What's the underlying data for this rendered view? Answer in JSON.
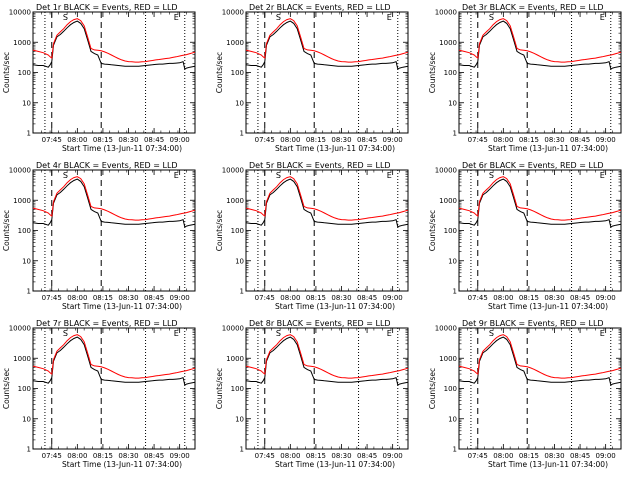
{
  "figure": {
    "panels": [
      {
        "title": "Det 1r BLACK = Events, RED = LLD"
      },
      {
        "title": "Det 2r BLACK = Events, RED = LLD"
      },
      {
        "title": "Det 3r BLACK = Events, RED = LLD"
      },
      {
        "title": "Det 4r BLACK = Events, RED = LLD"
      },
      {
        "title": "Det 5r BLACK = Events, RED = LLD"
      },
      {
        "title": "Det 6r BLACK = Events, RED = LLD"
      },
      {
        "title": "Det 7r BLACK = Events, RED = LLD"
      },
      {
        "title": "Det 8r BLACK = Events, RED = LLD"
      },
      {
        "title": "Det 9r BLACK = Events, RED = LLD"
      }
    ],
    "xlabel": "Start Time (13-Jun-11 07:34:00)",
    "ylabel": "Counts/sec",
    "xticks": [
      "07:45",
      "08:00",
      "08:15",
      "08:30",
      "08:45",
      "09:00"
    ],
    "yticks": [
      "1",
      "10",
      "100",
      "1000",
      "10000"
    ],
    "markers": [
      "S",
      "E"
    ],
    "colors": {
      "events": "#000000",
      "lld": "#ff0000"
    }
  },
  "chart_data": {
    "type": "line",
    "layout": "3x3 grid",
    "x_unit": "minutes after 07:34:00",
    "xlim": [
      0,
      95
    ],
    "ylim": [
      1,
      10000
    ],
    "yscale": "log",
    "xtick_minutes": [
      11,
      26,
      41,
      56,
      71,
      86
    ],
    "xtick_labels": [
      "07:45",
      "08:00",
      "08:15",
      "08:30",
      "08:45",
      "09:00"
    ],
    "ytick_values": [
      1,
      10,
      100,
      1000,
      10000
    ],
    "vertical_lines": [
      {
        "style": "dotted",
        "x": 7
      },
      {
        "style": "dashed",
        "x": 11
      },
      {
        "style": "dashed",
        "x": 40
      },
      {
        "style": "dotted",
        "x": 66
      },
      {
        "style": "dotted",
        "x": 89
      }
    ],
    "marker_labels": [
      {
        "text": "S",
        "x": 19
      },
      {
        "text": "E",
        "x": 84
      }
    ],
    "x": [
      0,
      3,
      6,
      9,
      10,
      11,
      12,
      14,
      16,
      18,
      20,
      22,
      24,
      26,
      28,
      30,
      32,
      34,
      36,
      38,
      40,
      42,
      44,
      46,
      48,
      50,
      52,
      54,
      56,
      58,
      60,
      62,
      64,
      66,
      68,
      70,
      72,
      74,
      76,
      78,
      80,
      82,
      84,
      86,
      88,
      89,
      90,
      92,
      95
    ],
    "series": [
      {
        "name": "Events",
        "color": "#000000",
        "values": [
          180,
          170,
          170,
          150,
          180,
          230,
          800,
          1500,
          1800,
          2300,
          3000,
          3800,
          4500,
          5000,
          4200,
          2800,
          1200,
          500,
          420,
          380,
          200,
          190,
          185,
          180,
          175,
          170,
          165,
          160,
          160,
          160,
          160,
          160,
          165,
          170,
          175,
          180,
          185,
          190,
          190,
          195,
          200,
          200,
          205,
          210,
          230,
          130,
          140,
          150,
          160
        ]
      },
      {
        "name": "LLD",
        "color": "#ff0000",
        "values": [
          550,
          500,
          450,
          380,
          330,
          300,
          900,
          1700,
          2200,
          2800,
          3800,
          4800,
          5600,
          6000,
          5200,
          3500,
          1500,
          620,
          560,
          540,
          520,
          480,
          430,
          380,
          330,
          290,
          260,
          240,
          230,
          225,
          220,
          220,
          225,
          230,
          240,
          250,
          260,
          270,
          280,
          290,
          300,
          315,
          330,
          350,
          370,
          380,
          390,
          420,
          470
        ]
      }
    ]
  }
}
